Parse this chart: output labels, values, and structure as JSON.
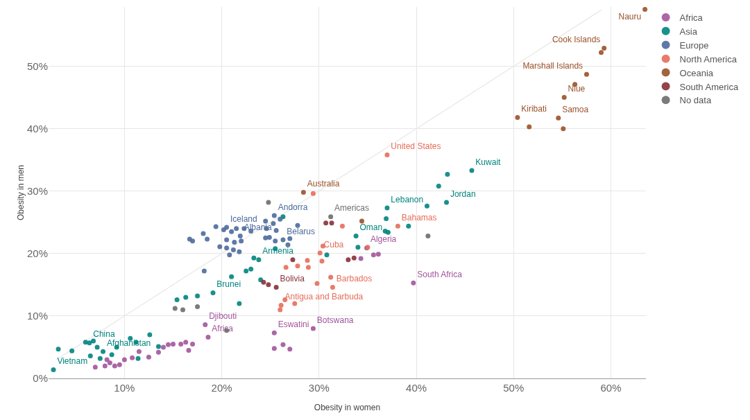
{
  "chart_data": {
    "type": "scatter",
    "xlabel": "Obesity in women",
    "ylabel": "Obesity in men",
    "xlim": [
      2.2,
      63.6
    ],
    "ylim": [
      0,
      59.5
    ],
    "xticks": [
      {
        "value": 10,
        "label": "10%"
      },
      {
        "value": 20,
        "label": "20%"
      },
      {
        "value": 30,
        "label": "30%"
      },
      {
        "value": 40,
        "label": "40%"
      },
      {
        "value": 50,
        "label": "50%"
      },
      {
        "value": 60,
        "label": "60%"
      }
    ],
    "yticks": [
      {
        "value": 0,
        "label": "0%"
      },
      {
        "value": 10,
        "label": "10%"
      },
      {
        "value": 20,
        "label": "20%"
      },
      {
        "value": 30,
        "label": "30%"
      },
      {
        "value": 40,
        "label": "40%"
      },
      {
        "value": 50,
        "label": "50%"
      }
    ],
    "grid": true,
    "legend": "top right",
    "marker": "circle",
    "series": [
      {
        "type": "line",
        "marker": "none",
        "color": "#ebebeb",
        "x": [
          3,
          59
        ],
        "values": [
          3,
          59
        ]
      },
      {
        "name": "Africa",
        "color": "#a2559c",
        "x": [
          7.0,
          8.0,
          8.5,
          9.0,
          9.5,
          10.0,
          10.8,
          12.5,
          13.5,
          14.0,
          14.5,
          15.0,
          15.8,
          16.3,
          17.0,
          8.2,
          11.5,
          18.6,
          18.3,
          29.4,
          25.4,
          25.4,
          26.3,
          27.0,
          34.9,
          35.6,
          36.1,
          34.3,
          39.7,
          16.6
        ],
        "values": [
          1.8,
          2.0,
          2.5,
          2.0,
          2.2,
          3.0,
          3.3,
          3.4,
          4.2,
          5.0,
          5.4,
          5.5,
          5.5,
          5.8,
          5.5,
          3.0,
          4.3,
          6.6,
          8.6,
          8.0,
          7.3,
          4.8,
          5.4,
          4.7,
          20.9,
          19.8,
          19.9,
          19.2,
          15.3,
          4.5
        ],
        "value_labels": [
          null,
          null,
          null,
          null,
          null,
          null,
          null,
          null,
          null,
          null,
          null,
          null,
          null,
          null,
          null,
          null,
          null,
          "Africa",
          "Djibouti",
          "Botswana",
          "Eswatini",
          null,
          null,
          null,
          "Algeria",
          null,
          null,
          null,
          "South Africa",
          null
        ]
      },
      {
        "name": "Asia",
        "color": "#00847e",
        "x": [
          3.2,
          4.6,
          6.0,
          6.8,
          7.2,
          7.5,
          6.5,
          8.7,
          9.2,
          10.6,
          11.2,
          12.6,
          11.4,
          13.5,
          15.4,
          16.3,
          17.5,
          21.8,
          21.0,
          22.5,
          23.0,
          23.3,
          24.0,
          25.5,
          26.3,
          30.8,
          34.0,
          36.9,
          36.8,
          39.2,
          41.1,
          42.3,
          43.2,
          43.1,
          45.7,
          37.0,
          33.8,
          37.1,
          23.8,
          19.1,
          6.4,
          7.8,
          2.7
        ],
        "values": [
          4.7,
          4.4,
          5.8,
          6.0,
          5.0,
          3.2,
          3.6,
          3.8,
          5.0,
          6.4,
          5.8,
          7.0,
          3.2,
          5.1,
          12.6,
          13.0,
          13.2,
          12.0,
          16.3,
          17.2,
          17.5,
          19.3,
          15.8,
          20.8,
          25.9,
          19.8,
          21.0,
          25.6,
          23.6,
          24.4,
          27.6,
          30.8,
          32.7,
          28.2,
          33.3,
          27.3,
          22.8,
          23.4,
          19.0,
          13.7,
          5.7,
          4.3,
          1.4
        ],
        "value_labels": [
          null,
          null,
          null,
          null,
          null,
          null,
          null,
          null,
          null,
          null,
          null,
          null,
          null,
          null,
          null,
          null,
          null,
          null,
          null,
          null,
          null,
          null,
          null,
          null,
          null,
          null,
          null,
          null,
          null,
          null,
          null,
          null,
          null,
          "Jordan",
          "Kuwait",
          "Lebanon",
          "Oman",
          null,
          "Armenia",
          "Brunei",
          "China",
          "Afghanistan",
          "Vietnam"
        ]
      },
      {
        "name": "Europe",
        "color": "#4c6a9c",
        "x": [
          19.4,
          20.2,
          21.0,
          21.5,
          22.3,
          23.0,
          20.5,
          21.3,
          22.0,
          21.2,
          21.8,
          20.8,
          19.8,
          20.5,
          18.2,
          24.6,
          24.5,
          25.3,
          26.0,
          25.6,
          24.9,
          25.5,
          26.8,
          27.0,
          24.5,
          16.7,
          17.0,
          18.1,
          18.5,
          27.8,
          25.4,
          20.5,
          21.9,
          26.3
        ],
        "values": [
          24.3,
          23.8,
          23.5,
          24.0,
          24.0,
          23.6,
          22.2,
          21.8,
          22.0,
          20.6,
          20.3,
          19.8,
          21.1,
          20.9,
          17.2,
          24.0,
          25.2,
          24.8,
          25.5,
          23.7,
          22.6,
          22.0,
          21.4,
          22.4,
          22.5,
          22.3,
          22.0,
          23.2,
          22.3,
          24.5,
          26.1,
          24.2,
          22.8,
          22.2
        ],
        "value_labels": [
          null,
          null,
          null,
          null,
          null,
          null,
          null,
          null,
          null,
          null,
          null,
          null,
          null,
          null,
          null,
          null,
          null,
          null,
          null,
          null,
          null,
          null,
          null,
          null,
          null,
          null,
          null,
          null,
          null,
          null,
          "Andorra",
          "Iceland",
          "Albania",
          "Belarus"
        ]
      },
      {
        "name": "North America",
        "color": "#e56e5a",
        "x": [
          37.0,
          38.1,
          30.1,
          30.4,
          30.3,
          28.8,
          28.9,
          31.4,
          31.2,
          29.8,
          26.1,
          26.0,
          26.5,
          27.5,
          29.4,
          32.4,
          27.8,
          26.6,
          35.0
        ],
        "values": [
          35.8,
          24.4,
          20.1,
          21.2,
          18.8,
          18.9,
          17.8,
          14.6,
          16.2,
          15.2,
          11.7,
          11.0,
          12.6,
          12.0,
          29.6,
          24.4,
          18.0,
          17.8,
          21.0
        ],
        "value_labels": [
          "United States",
          "Bahamas",
          "Cuba",
          null,
          null,
          null,
          null,
          "Barbados",
          null,
          null,
          "Antigua and Barbuda",
          null,
          null,
          null,
          null,
          null,
          null,
          null,
          null
        ]
      },
      {
        "name": "Oceania",
        "color": "#9a5129",
        "x": [
          63.5,
          59.0,
          59.3,
          57.5,
          56.3,
          55.2,
          50.4,
          51.6,
          54.6,
          55.1,
          28.4,
          34.4
        ],
        "values": [
          59.1,
          52.2,
          52.9,
          48.7,
          47.1,
          45.0,
          41.8,
          40.3,
          41.7,
          40.0,
          29.8,
          25.2
        ],
        "value_labels": [
          "Nauru",
          null,
          "Cook Islands",
          "Marshall Islands",
          null,
          "Niue",
          "Kiribati",
          null,
          "Samoa",
          null,
          "Australia",
          null
        ]
      },
      {
        "name": "South America",
        "color": "#883039",
        "x": [
          30.7,
          31.3,
          25.6,
          24.3,
          24.8,
          33.0,
          33.6,
          27.3
        ],
        "values": [
          24.9,
          24.9,
          14.6,
          15.4,
          15.0,
          19.0,
          19.3,
          19.0
        ],
        "value_labels": [
          null,
          null,
          "Bolivia",
          null,
          null,
          null,
          null,
          null
        ]
      },
      {
        "name": "No data",
        "color": "#6d6d6d",
        "x": [
          24.8,
          17.5,
          16.0,
          20.5,
          41.2,
          31.2,
          15.2
        ],
        "values": [
          28.2,
          11.5,
          11.0,
          7.7,
          22.8,
          25.9,
          11.2
        ],
        "value_labels": [
          null,
          null,
          null,
          null,
          null,
          "Americas",
          null
        ]
      }
    ]
  }
}
